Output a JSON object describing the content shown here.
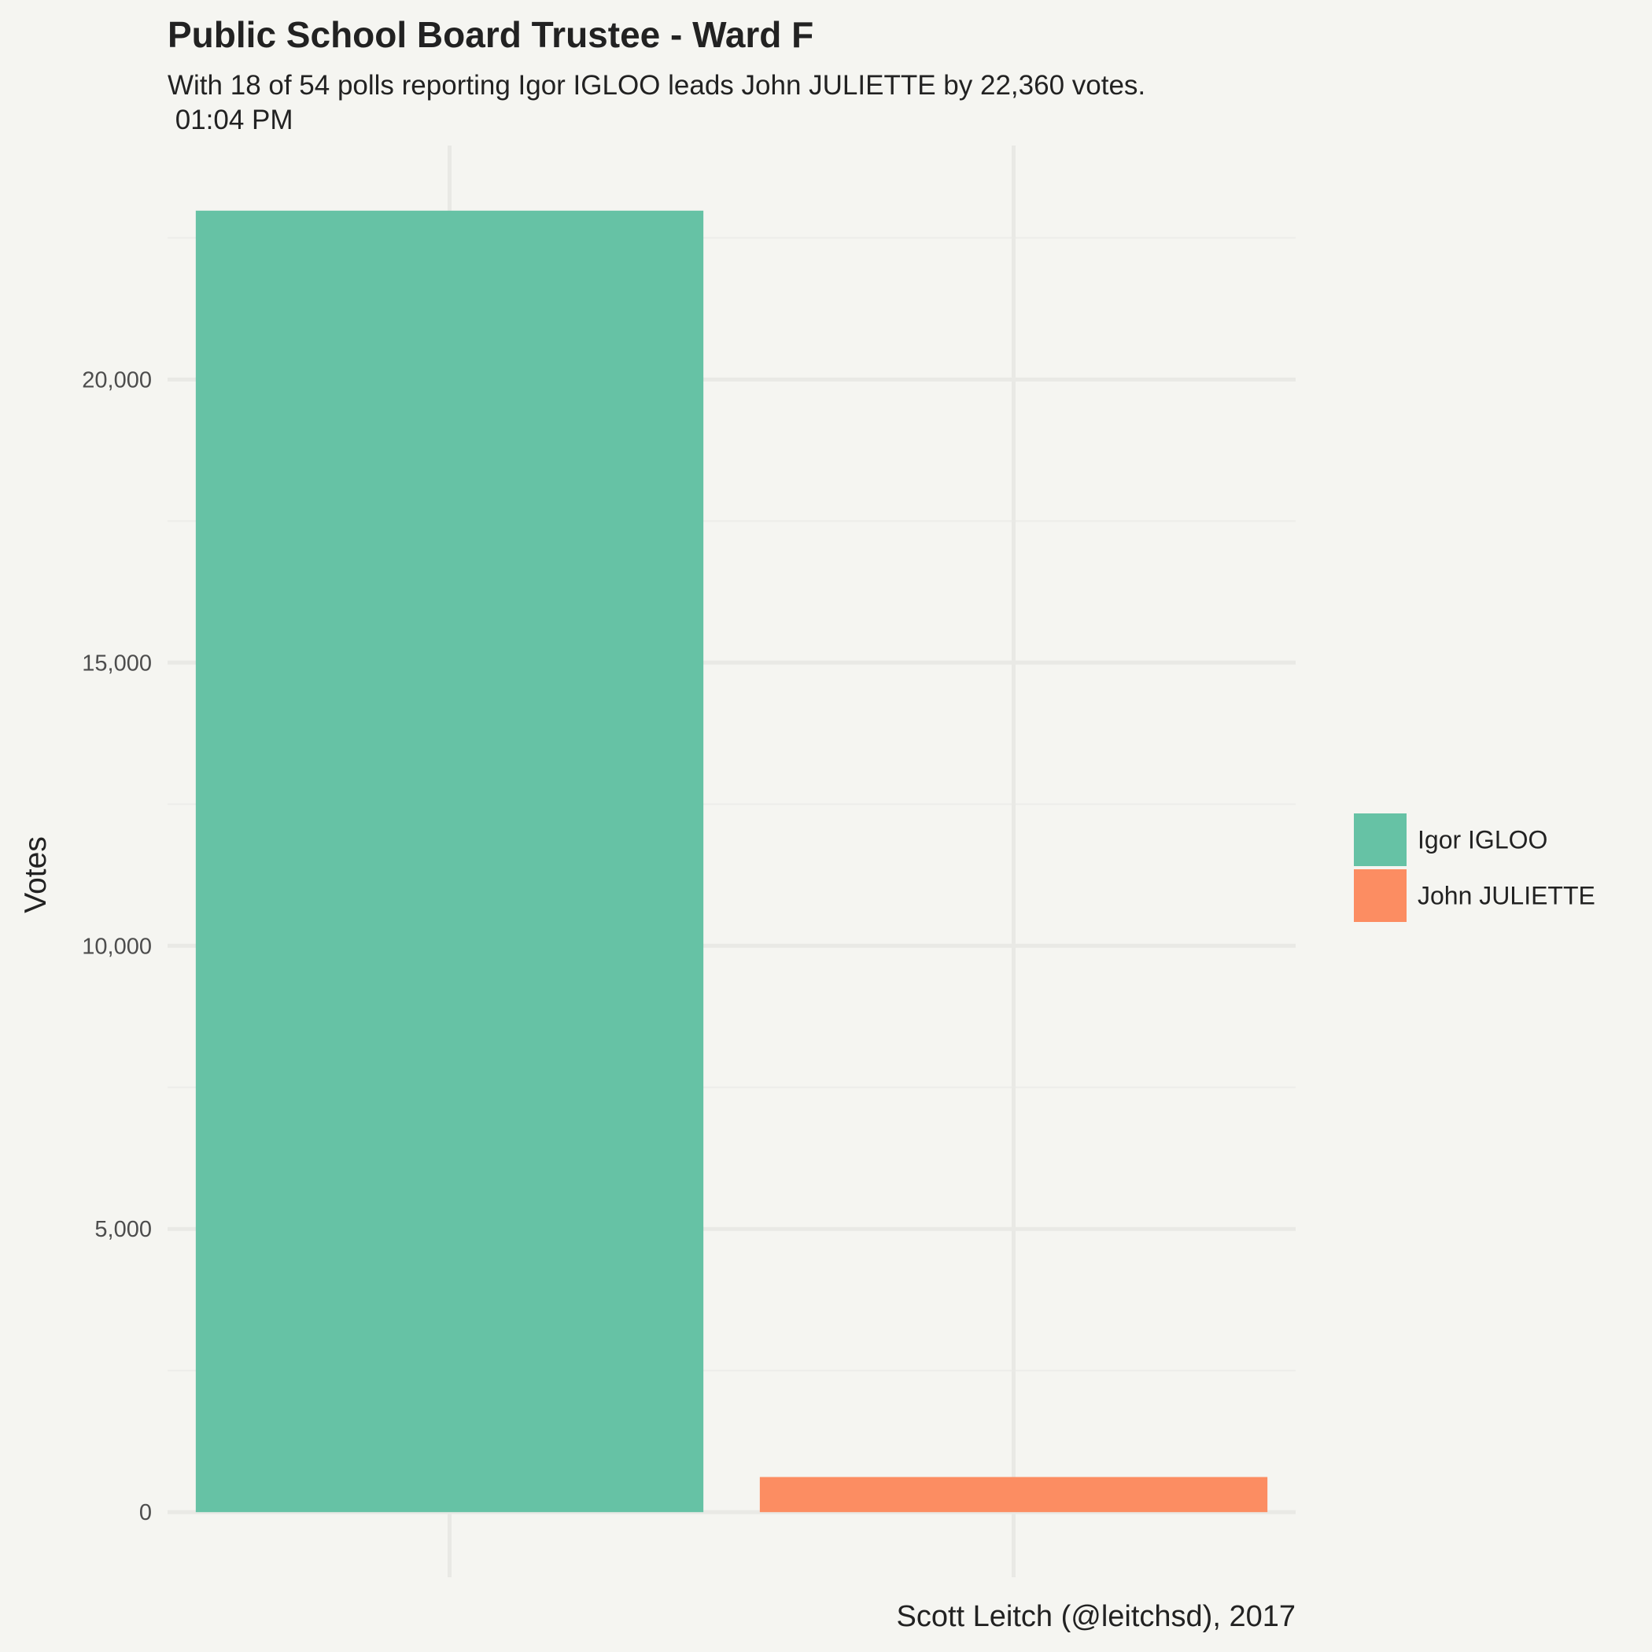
{
  "chart_data": {
    "type": "bar",
    "title": "Public School Board Trustee - Ward F",
    "subtitle_line1": "With 18 of 54 polls reporting Igor IGLOO leads John JULIETTE by 22,360 votes.",
    "subtitle_line2": " 01:04 PM",
    "xlabel": "",
    "ylabel": "Votes",
    "caption": "Scott Leitch (@leitchsd), 2017",
    "categories": [
      "Igor IGLOO",
      "John JULIETTE"
    ],
    "values": [
      22980,
      620
    ],
    "colors": [
      "#66c2a5",
      "#fc8d62"
    ],
    "y_ticks": [
      0,
      5000,
      10000,
      15000,
      20000
    ],
    "y_tick_labels": [
      "0",
      "5,000",
      "10,000",
      "15,000",
      "20,000"
    ],
    "ylim": [
      -1150,
      24130
    ],
    "grid": true,
    "legend": {
      "position": "right",
      "entries": [
        "Igor IGLOO",
        "John JULIETTE"
      ]
    }
  }
}
